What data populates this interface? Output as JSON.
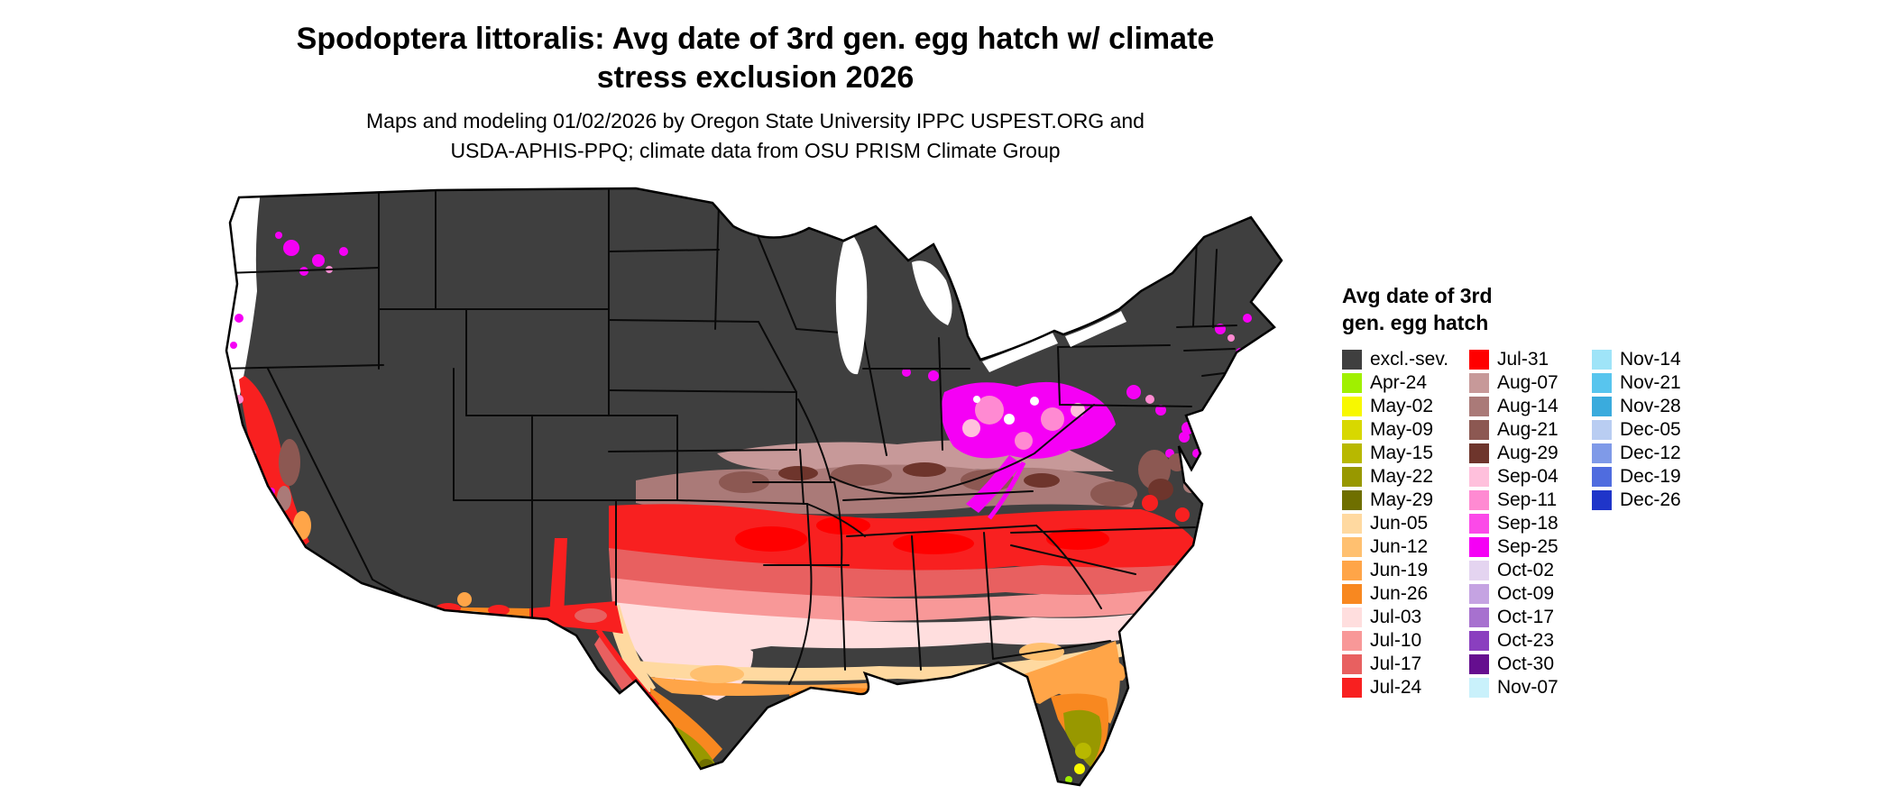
{
  "header": {
    "title_line1": "Spodoptera littoralis: Avg date of 3rd gen. egg hatch w/ climate",
    "title_line2": "stress exclusion 2026",
    "subtitle_line1": "Maps and modeling 01/02/2026 by Oregon State University IPPC USPEST.ORG and",
    "subtitle_line2": "USDA-APHIS-PPQ; climate data from OSU PRISM Climate Group"
  },
  "map": {
    "description": "Continental US choropleth map of average date of 3rd generation egg hatch",
    "excluded_color": "#3f3f3f",
    "background_color": "#ffffff",
    "border_color": "#000000"
  },
  "legend": {
    "title_line1": "Avg date of 3rd",
    "title_line2": "gen. egg hatch",
    "columns": [
      [
        {
          "label": "excl.-sev.",
          "color": "#3f3f3f"
        },
        {
          "label": "Apr-24",
          "color": "#a0f000"
        },
        {
          "label": "May-02",
          "color": "#f8f800"
        },
        {
          "label": "May-09",
          "color": "#d8d800"
        },
        {
          "label": "May-15",
          "color": "#b8b800"
        },
        {
          "label": "May-22",
          "color": "#989800"
        },
        {
          "label": "May-29",
          "color": "#6f6f00"
        },
        {
          "label": "Jun-05",
          "color": "#ffd9a0"
        },
        {
          "label": "Jun-12",
          "color": "#ffc070"
        },
        {
          "label": "Jun-19",
          "color": "#ffa548"
        },
        {
          "label": "Jun-26",
          "color": "#f88820"
        },
        {
          "label": "Jul-03",
          "color": "#ffdede"
        },
        {
          "label": "Jul-10",
          "color": "#f89898"
        },
        {
          "label": "Jul-17",
          "color": "#e86060"
        },
        {
          "label": "Jul-24",
          "color": "#f82020"
        }
      ],
      [
        {
          "label": "Jul-31",
          "color": "#ff0000"
        },
        {
          "label": "Aug-07",
          "color": "#c79999"
        },
        {
          "label": "Aug-14",
          "color": "#aa7a78"
        },
        {
          "label": "Aug-21",
          "color": "#8c5852"
        },
        {
          "label": "Aug-29",
          "color": "#6e352c"
        },
        {
          "label": "Sep-04",
          "color": "#ffc0dc"
        },
        {
          "label": "Sep-11",
          "color": "#ff8ad2"
        },
        {
          "label": "Sep-18",
          "color": "#fb4ae8"
        },
        {
          "label": "Sep-25",
          "color": "#f500f5"
        },
        {
          "label": "Oct-02",
          "color": "#e4d4f0"
        },
        {
          "label": "Oct-09",
          "color": "#c5a3e2"
        },
        {
          "label": "Oct-17",
          "color": "#a771cf"
        },
        {
          "label": "Oct-23",
          "color": "#8a3fbf"
        },
        {
          "label": "Oct-30",
          "color": "#650e8f"
        },
        {
          "label": "Nov-07",
          "color": "#c9f1fb"
        }
      ],
      [
        {
          "label": "Nov-14",
          "color": "#9fe4f8"
        },
        {
          "label": "Nov-21",
          "color": "#58c5ee"
        },
        {
          "label": "Nov-28",
          "color": "#3aabdd"
        },
        {
          "label": "Dec-05",
          "color": "#b9cdf2"
        },
        {
          "label": "Dec-12",
          "color": "#7f9ae8"
        },
        {
          "label": "Dec-19",
          "color": "#4f6cdf"
        },
        {
          "label": "Dec-26",
          "color": "#1f35c9"
        }
      ]
    ]
  }
}
